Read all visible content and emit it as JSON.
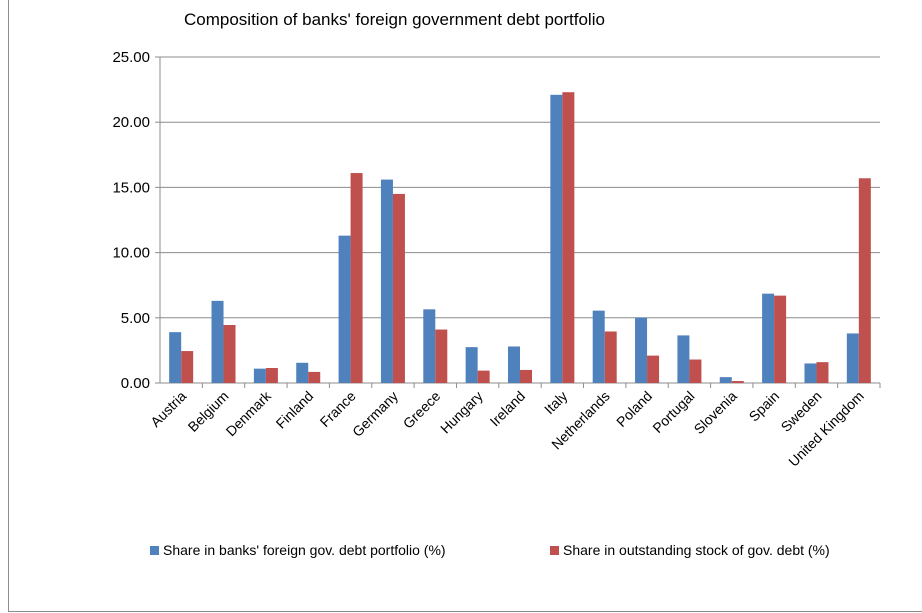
{
  "chart_data": {
    "type": "bar",
    "title": "Composition of banks' foreign government debt portfolio",
    "xlabel": "",
    "ylabel": "",
    "ylim": [
      0,
      25
    ],
    "yticks": [
      "0.00",
      "5.00",
      "10.00",
      "15.00",
      "20.00",
      "25.00"
    ],
    "grid": true,
    "legend_position": "bottom",
    "categories": [
      "Austria",
      "Belgium",
      "Denmark",
      "Finland",
      "France",
      "Germany",
      "Greece",
      "Hungary",
      "Ireland",
      "Italy",
      "Netherlands",
      "Poland",
      "Portugal",
      "Slovenia",
      "Spain",
      "Sweden",
      "United Kingdom"
    ],
    "series": [
      {
        "name": "Share in banks' foreign gov. debt portfolio (%)",
        "color": "#4F81BD",
        "values": [
          3.9,
          6.3,
          1.1,
          1.55,
          11.3,
          15.6,
          5.65,
          2.75,
          2.8,
          22.1,
          5.55,
          5.0,
          3.65,
          0.45,
          6.85,
          1.5,
          3.8
        ]
      },
      {
        "name": "Share in outstanding stock of gov. debt (%)",
        "color": "#C0504D",
        "values": [
          2.45,
          4.45,
          1.15,
          0.85,
          16.1,
          14.5,
          4.1,
          0.95,
          1.0,
          22.3,
          3.95,
          2.1,
          1.8,
          0.15,
          6.7,
          1.6,
          15.7
        ]
      }
    ]
  }
}
